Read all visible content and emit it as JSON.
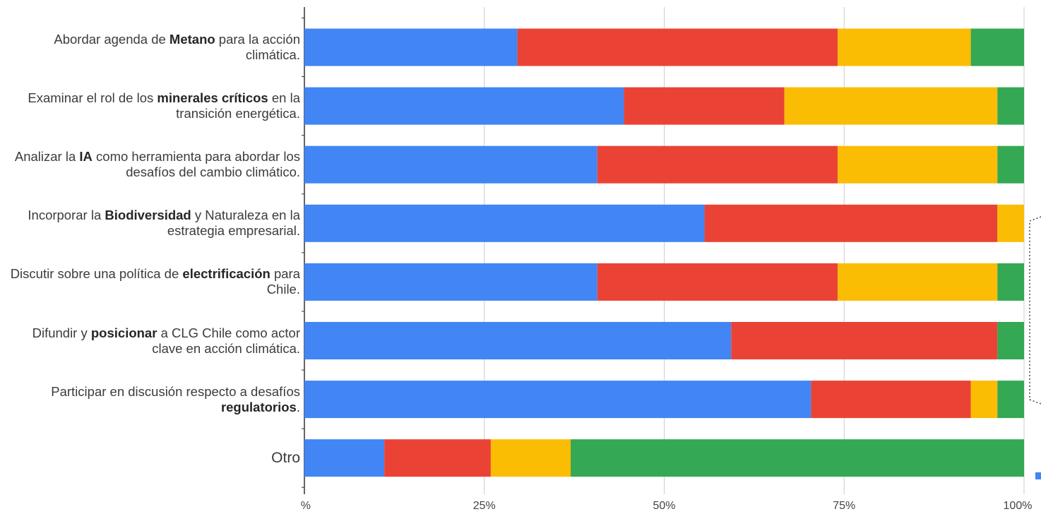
{
  "chart_data": {
    "type": "bar",
    "orientation": "horizontal",
    "stacked": "percent",
    "categories": [
      [
        {
          "t": "Abordar agenda de ",
          "b": false
        },
        {
          "t": "Metano",
          "b": true
        },
        {
          "t": " para la acción climática.",
          "b": false
        }
      ],
      [
        {
          "t": "Examinar el rol de los ",
          "b": false
        },
        {
          "t": "minerales críticos",
          "b": true
        },
        {
          "t": " en la transición energética.",
          "b": false
        }
      ],
      [
        {
          "t": "Analizar la ",
          "b": false
        },
        {
          "t": "IA",
          "b": true
        },
        {
          "t": " como herramienta para abordar los desafíos del cambio climático.",
          "b": false
        }
      ],
      [
        {
          "t": "Incorporar la ",
          "b": false
        },
        {
          "t": "Biodiversidad",
          "b": true
        },
        {
          "t": " y Naturaleza en la estrategia empresarial.",
          "b": false
        }
      ],
      [
        {
          "t": "Discutir sobre una política de ",
          "b": false
        },
        {
          "t": "electrificación",
          "b": true
        },
        {
          "t": " para Chile.",
          "b": false
        }
      ],
      [
        {
          "t": "Difundir y ",
          "b": false
        },
        {
          "t": "posicionar",
          "b": true
        },
        {
          "t": " a CLG Chile como actor clave en acción climática.",
          "b": false
        }
      ],
      [
        {
          "t": "Participar en discusión respecto a desafíos ",
          "b": false
        },
        {
          "t": "regulatorios",
          "b": true
        },
        {
          "t": ".",
          "b": false
        }
      ],
      [
        {
          "t": "Otro",
          "b": false
        }
      ]
    ],
    "series": [
      {
        "color": "#4285f4",
        "values": [
          29.6,
          44.4,
          40.7,
          55.6,
          40.7,
          59.3,
          70.4,
          11.1
        ]
      },
      {
        "color": "#ea4335",
        "values": [
          44.5,
          22.3,
          33.4,
          40.7,
          33.4,
          37.0,
          22.2,
          14.8
        ]
      },
      {
        "color": "#fbbc04",
        "values": [
          18.5,
          29.6,
          22.2,
          3.7,
          22.2,
          0.0,
          3.7,
          11.1
        ]
      },
      {
        "color": "#34a853",
        "values": [
          7.4,
          3.7,
          3.7,
          0.0,
          3.7,
          3.7,
          3.7,
          63.0
        ]
      }
    ],
    "x_ticks": [
      "%",
      "25%",
      "50%",
      "75%",
      "100%"
    ],
    "xlim": [
      0,
      100
    ],
    "grid": true,
    "legend": "right"
  }
}
